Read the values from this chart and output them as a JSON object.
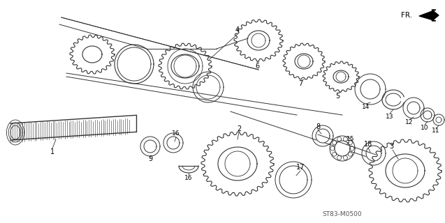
{
  "background_color": "#ffffff",
  "diagram_code": "ST83-M0500",
  "direction_label": "FR.",
  "fig_width": 6.37,
  "fig_height": 3.2,
  "dpi": 100,
  "line_color": "#333333",
  "label_color": "#000000"
}
